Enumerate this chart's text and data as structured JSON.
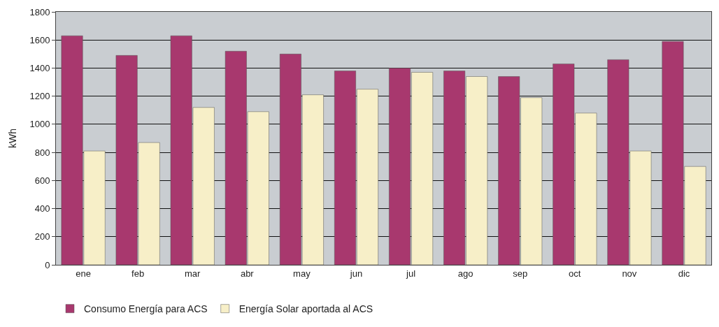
{
  "chart_data": {
    "type": "bar",
    "ylabel": "kWh",
    "categories": [
      "ene",
      "feb",
      "mar",
      "abr",
      "may",
      "jun",
      "jul",
      "ago",
      "sep",
      "oct",
      "nov",
      "dic"
    ],
    "series": [
      {
        "name": "Consumo Energía para ACS",
        "color": "#a8386e",
        "values": [
          1630,
          1490,
          1630,
          1520,
          1500,
          1380,
          1400,
          1380,
          1340,
          1430,
          1460,
          1590
        ]
      },
      {
        "name": "Energía Solar aportada al ACS",
        "color": "#f7efc8",
        "values": [
          810,
          870,
          1120,
          1090,
          1210,
          1250,
          1370,
          1340,
          1190,
          1080,
          810,
          700
        ]
      }
    ],
    "ylim": [
      0,
      1800
    ],
    "yticks": [
      0,
      200,
      400,
      600,
      800,
      1000,
      1200,
      1400,
      1600,
      1800
    ],
    "grid": "y",
    "legend": "bottom left"
  }
}
